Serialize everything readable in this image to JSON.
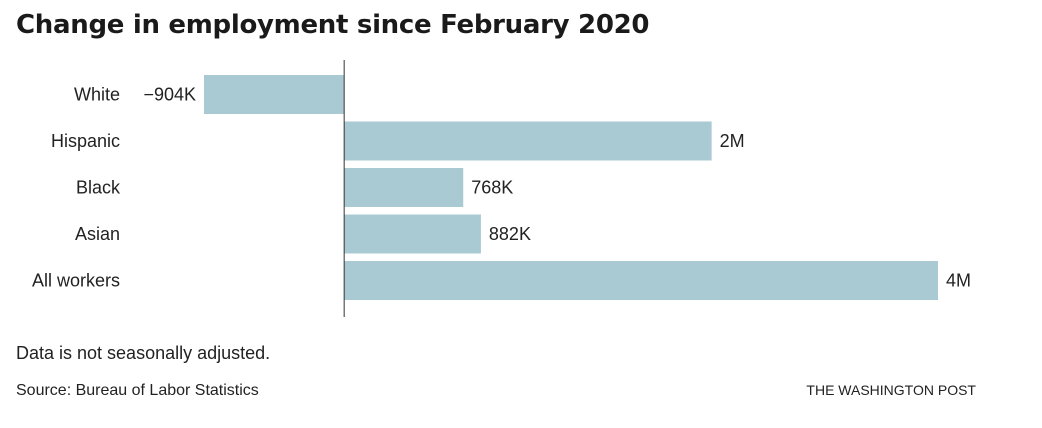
{
  "title": "Change in employment since February 2020",
  "note": "Data is not seasonally adjusted.",
  "source": "Source: Bureau of Labor Statistics",
  "credit": "THE WASHINGTON POST",
  "colors": {
    "bar": "#a9cad2",
    "axis": "#333333",
    "text": "#222222"
  },
  "chart_data": {
    "type": "bar",
    "orientation": "horizontal",
    "categories": [
      "White",
      "Hispanic",
      "Black",
      "Asian",
      "All workers"
    ],
    "values": [
      -904000,
      2370000,
      768000,
      882000,
      3830000
    ],
    "data_labels": [
      "−904K",
      "2M",
      "768K",
      "882K",
      "4M"
    ],
    "xlim": [
      -904000,
      3830000
    ],
    "grid": false
  }
}
